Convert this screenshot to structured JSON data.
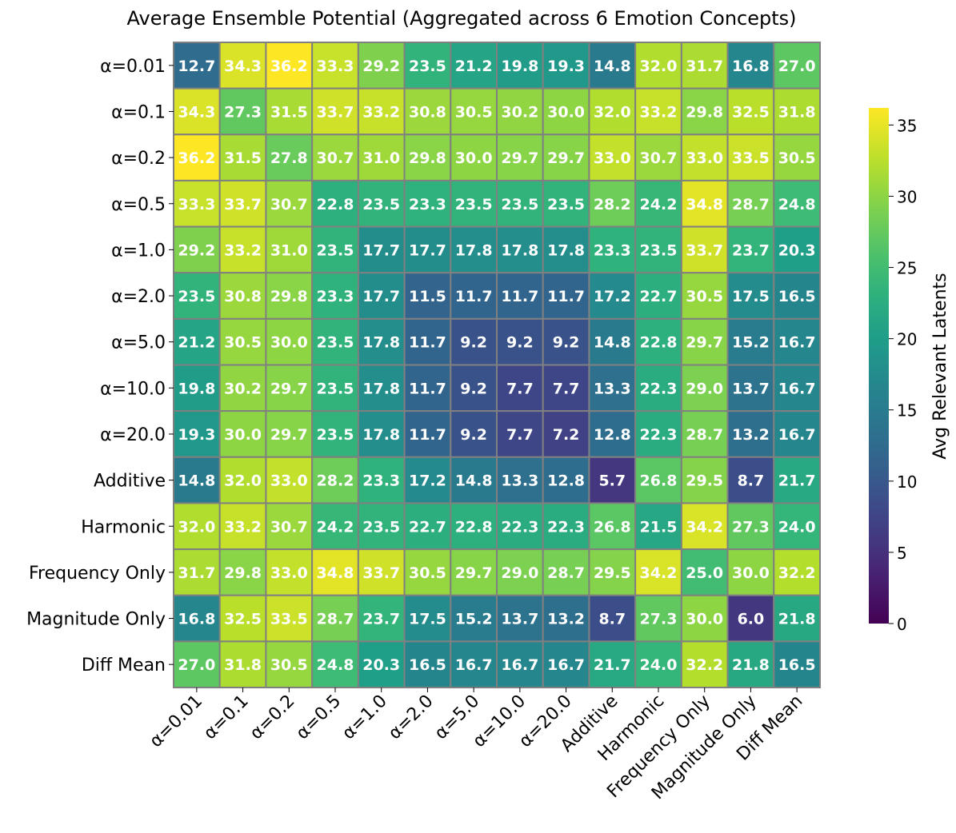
{
  "chart_data": {
    "type": "heatmap",
    "title": "Average Ensemble Potential (Aggregated across 6 Emotion Concepts)",
    "xlabel": "",
    "ylabel": "",
    "row_labels": [
      "α=0.01",
      "α=0.1",
      "α=0.2",
      "α=0.5",
      "α=1.0",
      "α=2.0",
      "α=5.0",
      "α=10.0",
      "α=20.0",
      "Additive",
      "Harmonic",
      "Frequency Only",
      "Magnitude Only",
      "Diff Mean"
    ],
    "col_labels": [
      "α=0.01",
      "α=0.1",
      "α=0.2",
      "α=0.5",
      "α=1.0",
      "α=2.0",
      "α=5.0",
      "α=10.0",
      "α=20.0",
      "Additive",
      "Harmonic",
      "Frequency Only",
      "Magnitude Only",
      "Diff Mean"
    ],
    "values": [
      [
        12.7,
        34.3,
        36.2,
        33.3,
        29.2,
        23.5,
        21.2,
        19.8,
        19.3,
        14.8,
        32.0,
        31.7,
        16.8,
        27.0
      ],
      [
        34.3,
        27.3,
        31.5,
        33.7,
        33.2,
        30.8,
        30.5,
        30.2,
        30.0,
        32.0,
        33.2,
        29.8,
        32.5,
        31.8
      ],
      [
        36.2,
        31.5,
        27.8,
        30.7,
        31.0,
        29.8,
        30.0,
        29.7,
        29.7,
        33.0,
        30.7,
        33.0,
        33.5,
        30.5
      ],
      [
        33.3,
        33.7,
        30.7,
        22.8,
        23.5,
        23.3,
        23.5,
        23.5,
        23.5,
        28.2,
        24.2,
        34.8,
        28.7,
        24.8
      ],
      [
        29.2,
        33.2,
        31.0,
        23.5,
        17.7,
        17.7,
        17.8,
        17.8,
        17.8,
        23.3,
        23.5,
        33.7,
        23.7,
        20.3
      ],
      [
        23.5,
        30.8,
        29.8,
        23.3,
        17.7,
        11.5,
        11.7,
        11.7,
        11.7,
        17.2,
        22.7,
        30.5,
        17.5,
        16.5
      ],
      [
        21.2,
        30.5,
        30.0,
        23.5,
        17.8,
        11.7,
        9.2,
        9.2,
        9.2,
        14.8,
        22.8,
        29.7,
        15.2,
        16.7
      ],
      [
        19.8,
        30.2,
        29.7,
        23.5,
        17.8,
        11.7,
        9.2,
        7.7,
        7.7,
        13.3,
        22.3,
        29.0,
        13.7,
        16.7
      ],
      [
        19.3,
        30.0,
        29.7,
        23.5,
        17.8,
        11.7,
        9.2,
        7.7,
        7.2,
        12.8,
        22.3,
        28.7,
        13.2,
        16.7
      ],
      [
        14.8,
        32.0,
        33.0,
        28.2,
        23.3,
        17.2,
        14.8,
        13.3,
        12.8,
        5.7,
        26.8,
        29.5,
        8.7,
        21.7
      ],
      [
        32.0,
        33.2,
        30.7,
        24.2,
        23.5,
        22.7,
        22.8,
        22.3,
        22.3,
        26.8,
        21.5,
        34.2,
        27.3,
        24.0
      ],
      [
        31.7,
        29.8,
        33.0,
        34.8,
        33.7,
        30.5,
        29.7,
        29.0,
        28.7,
        29.5,
        34.2,
        25.0,
        30.0,
        32.2
      ],
      [
        16.8,
        32.5,
        33.5,
        28.7,
        23.7,
        17.5,
        15.2,
        13.7,
        13.2,
        8.7,
        27.3,
        30.0,
        6.0,
        21.8
      ],
      [
        27.0,
        31.8,
        30.5,
        24.8,
        20.3,
        16.5,
        16.7,
        16.7,
        16.7,
        21.7,
        24.0,
        32.2,
        21.8,
        16.5
      ]
    ],
    "colormap": "viridis",
    "vmin": 0,
    "vmax": 36.2,
    "colorbar": {
      "label": "Avg Relevant Latents",
      "ticks": [
        "0",
        "5",
        "10",
        "15",
        "20",
        "25",
        "30",
        "35"
      ]
    },
    "annotation_color": "#ffffff",
    "cell_border_color": "#808080"
  }
}
